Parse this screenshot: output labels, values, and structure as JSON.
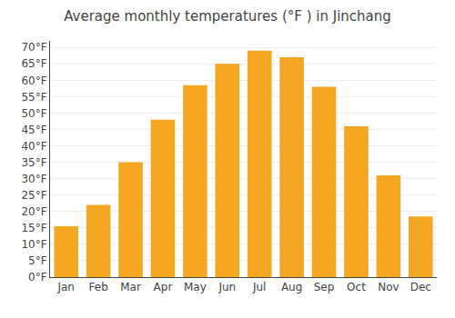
{
  "chart_data": {
    "type": "bar",
    "title": "Average monthly temperatures (°F ) in Jinchang",
    "categories": [
      "Jan",
      "Feb",
      "Mar",
      "Apr",
      "May",
      "Jun",
      "Jul",
      "Aug",
      "Sep",
      "Oct",
      "Nov",
      "Dec"
    ],
    "values": [
      15.5,
      22,
      35,
      48,
      58.5,
      65,
      69,
      67,
      58,
      46,
      31,
      18.5
    ],
    "color": "#F5A623",
    "ylim": [
      0,
      72
    ],
    "yticks": [
      {
        "value": 0,
        "label": "0°F"
      },
      {
        "value": 5,
        "label": "5°F"
      },
      {
        "value": 10,
        "label": "10°F"
      },
      {
        "value": 15,
        "label": "15°F"
      },
      {
        "value": 20,
        "label": "20°F"
      },
      {
        "value": 25,
        "label": "25°F"
      },
      {
        "value": 30,
        "label": "30°F"
      },
      {
        "value": 35,
        "label": "35°F"
      },
      {
        "value": 40,
        "label": "40°F"
      },
      {
        "value": 45,
        "label": "45°F"
      },
      {
        "value": 50,
        "label": "50°F"
      },
      {
        "value": 55,
        "label": "55°F"
      },
      {
        "value": 60,
        "label": "60°F"
      },
      {
        "value": 65,
        "label": "65°F"
      },
      {
        "value": 70,
        "label": "70°F"
      }
    ],
    "grid": true
  }
}
